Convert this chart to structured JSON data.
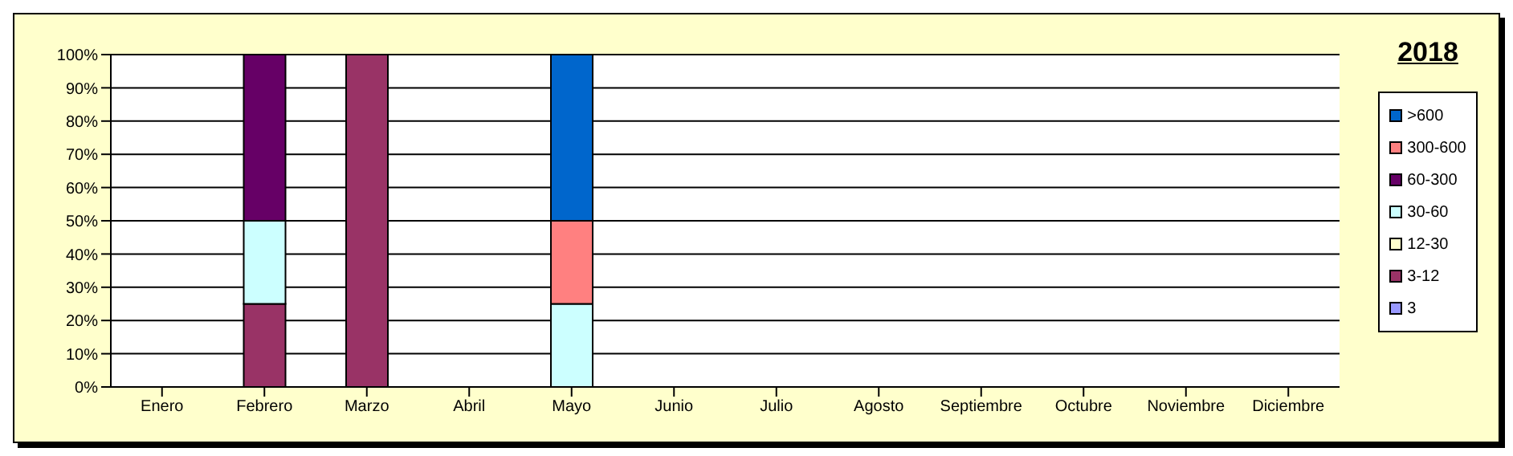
{
  "chart_data": {
    "type": "bar",
    "title": "2018",
    "stacked": true,
    "categories": [
      "Enero",
      "Febrero",
      "Marzo",
      "Abril",
      "Mayo",
      "Junio",
      "Julio",
      "Agosto",
      "Septiembre",
      "Octubre",
      "Noviembre",
      "Diciembre"
    ],
    "series": [
      {
        "name": "3",
        "color": "#9999ff",
        "values": [
          0,
          0,
          0,
          0,
          0,
          0,
          0,
          0,
          0,
          0,
          0,
          0
        ]
      },
      {
        "name": "3-12",
        "color": "#993366",
        "values": [
          0,
          25,
          100,
          0,
          0,
          0,
          0,
          0,
          0,
          0,
          0,
          0
        ]
      },
      {
        "name": "12-30",
        "color": "#ffffcc",
        "values": [
          0,
          0,
          0,
          0,
          0,
          0,
          0,
          0,
          0,
          0,
          0,
          0
        ]
      },
      {
        "name": "30-60",
        "color": "#ccffff",
        "values": [
          0,
          25,
          0,
          0,
          25,
          0,
          0,
          0,
          0,
          0,
          0,
          0
        ]
      },
      {
        "name": "60-300",
        "color": "#660066",
        "values": [
          0,
          50,
          0,
          0,
          0,
          0,
          0,
          0,
          0,
          0,
          0,
          0
        ]
      },
      {
        "name": "300-600",
        "color": "#ff8080",
        "values": [
          0,
          0,
          0,
          0,
          25,
          0,
          0,
          0,
          0,
          0,
          0,
          0
        ]
      },
      {
        "name": ">600",
        "color": "#0066cc",
        "values": [
          0,
          0,
          0,
          0,
          50,
          0,
          0,
          0,
          0,
          0,
          0,
          0
        ]
      }
    ],
    "ylim": [
      0,
      100
    ],
    "yticks": [
      {
        "value": 0,
        "label": "0%"
      },
      {
        "value": 10,
        "label": "10%"
      },
      {
        "value": 20,
        "label": "20%"
      },
      {
        "value": 30,
        "label": "30%"
      },
      {
        "value": 40,
        "label": "40%"
      },
      {
        "value": 50,
        "label": "50%"
      },
      {
        "value": 60,
        "label": "60%"
      },
      {
        "value": 70,
        "label": "70%"
      },
      {
        "value": 80,
        "label": "80%"
      },
      {
        "value": 90,
        "label": "90%"
      },
      {
        "value": 100,
        "label": "100%"
      }
    ],
    "grid": "y",
    "legend": "right"
  }
}
